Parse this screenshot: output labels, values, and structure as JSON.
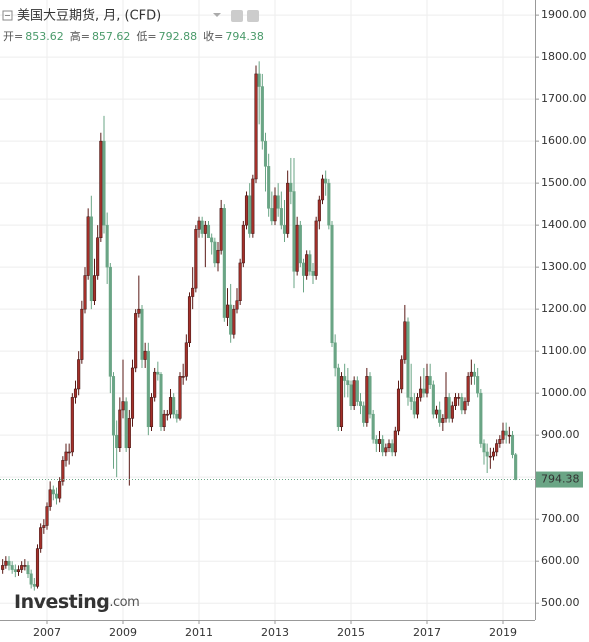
{
  "chart_data": {
    "type": "candlestick",
    "title": "美国大豆期货, 月, (CFD)",
    "ohlc_labels": [
      "开=",
      "高=",
      "低=",
      "收="
    ],
    "categories": [
      null,
      null,
      null,
      null,
      null,
      null,
      null,
      null,
      null,
      null,
      null,
      null,
      null,
      null,
      "2007",
      null,
      null,
      null,
      null,
      null,
      null,
      null,
      null,
      null,
      null,
      null,
      null,
      null,
      null,
      null,
      null,
      null,
      null,
      null,
      null,
      null,
      null,
      null,
      "2009",
      null,
      null,
      null,
      null,
      null,
      null,
      null,
      null,
      null,
      null,
      null,
      null,
      null,
      null,
      null,
      null,
      null,
      null,
      null,
      null,
      null,
      null,
      null,
      "2011",
      null,
      null,
      null,
      null,
      null,
      null,
      null,
      null,
      null,
      null,
      null,
      null,
      null,
      null,
      null,
      null,
      null,
      null,
      null,
      null,
      null,
      null,
      null,
      "2013",
      null,
      null,
      null,
      null,
      null,
      null,
      null,
      null,
      null,
      null,
      null,
      null,
      null,
      null,
      null,
      null,
      null,
      null,
      null,
      null,
      null,
      null,
      null,
      "2015",
      null,
      null,
      null,
      null,
      null,
      null,
      null,
      null,
      null,
      null,
      null,
      null,
      null,
      null,
      null,
      null,
      null,
      null,
      null,
      null,
      null,
      null,
      null,
      "2017",
      null,
      null,
      null,
      null,
      null,
      null,
      null,
      null,
      null,
      null,
      null,
      null,
      null,
      null,
      null,
      null,
      null,
      null,
      null,
      null,
      null,
      null,
      null,
      "2019",
      null,
      null,
      null,
      null
    ],
    "open": [
      580,
      590,
      600,
      590,
      580,
      575,
      580,
      590,
      590,
      570,
      545,
      540,
      630,
      680,
      685,
      730,
      770,
      760,
      750,
      790,
      840,
      860,
      860,
      990,
      1010,
      1080,
      1200,
      1280,
      1420,
      1220,
      1280,
      1370,
      1600,
      1400,
      1300,
      1040,
      900,
      870,
      960,
      980,
      870,
      940,
      1060,
      1190,
      1200,
      1080,
      1100,
      920,
      990,
      1050,
      1045,
      920,
      950,
      950,
      990,
      950,
      940,
      1040,
      1040,
      1120,
      1230,
      1250,
      1390,
      1410,
      1380,
      1400,
      1370,
      1360,
      1310,
      1340,
      1440,
      1180,
      1210,
      1140,
      1200,
      1220,
      1310,
      1400,
      1470,
      1380,
      1510,
      1760,
      1730,
      1600,
      1540,
      1440,
      1410,
      1470,
      1440,
      1400,
      1380,
      1500,
      1480,
      1290,
      1400,
      1310,
      1280,
      1330,
      1290,
      1280,
      1410,
      1460,
      1510,
      1500,
      1400,
      1120,
      1060,
      920,
      1040,
      1030,
      1020,
      970,
      1030,
      980,
      970,
      930,
      1040,
      950,
      890,
      880,
      890,
      860,
      870,
      880,
      860,
      910,
      1010,
      1080,
      1170,
      990,
      980,
      950,
      990,
      1010,
      1000,
      1040,
      1020,
      950,
      960,
      930,
      940,
      990,
      940,
      970,
      990,
      990,
      960,
      980,
      1040,
      1050,
      1040,
      1000,
      880,
      860,
      850,
      850,
      860,
      880,
      890,
      910,
      900,
      900,
      853.62
    ],
    "high": [
      605,
      612,
      612,
      600,
      592,
      590,
      600,
      605,
      600,
      580,
      560,
      640,
      690,
      700,
      740,
      790,
      780,
      775,
      800,
      850,
      880,
      880,
      1000,
      1030,
      1100,
      1220,
      1300,
      1440,
      1470,
      1320,
      1400,
      1620,
      1660,
      1430,
      1310,
      1050,
      935,
      990,
      1080,
      990,
      960,
      1080,
      1200,
      1280,
      1210,
      1120,
      1120,
      1000,
      1060,
      1075,
      1050,
      960,
      960,
      1010,
      1000,
      960,
      1050,
      1070,
      1140,
      1240,
      1300,
      1400,
      1420,
      1420,
      1410,
      1410,
      1380,
      1370,
      1360,
      1460,
      1450,
      1250,
      1260,
      1210,
      1250,
      1320,
      1410,
      1480,
      1500,
      1520,
      1780,
      1790,
      1760,
      1620,
      1570,
      1480,
      1490,
      1500,
      1480,
      1460,
      1530,
      1560,
      1560,
      1420,
      1410,
      1320,
      1340,
      1340,
      1310,
      1420,
      1470,
      1520,
      1530,
      1510,
      1410,
      1140,
      1070,
      1050,
      1070,
      1060,
      1030,
      1040,
      1040,
      1000,
      980,
      1060,
      1050,
      960,
      900,
      910,
      900,
      880,
      890,
      890,
      920,
      1030,
      1090,
      1210,
      1180,
      1070,
      1000,
      1000,
      1040,
      1060,
      1070,
      1070,
      1030,
      970,
      980,
      950,
      1050,
      1000,
      980,
      1000,
      1000,
      1000,
      990,
      1050,
      1080,
      1070,
      1060,
      1010,
      890,
      880,
      870,
      870,
      890,
      900,
      930,
      930,
      920,
      910,
      857.62
    ],
    "low": [
      570,
      582,
      578,
      570,
      562,
      565,
      572,
      578,
      560,
      535,
      530,
      535,
      620,
      665,
      675,
      720,
      745,
      735,
      740,
      780,
      825,
      830,
      850,
      975,
      995,
      1070,
      1190,
      1270,
      1200,
      1210,
      1270,
      1360,
      1380,
      1260,
      1000,
      820,
      800,
      860,
      940,
      860,
      780,
      920,
      1050,
      1180,
      1060,
      1060,
      900,
      910,
      980,
      1030,
      910,
      910,
      935,
      940,
      940,
      930,
      935,
      1020,
      1030,
      1110,
      1200,
      1240,
      1370,
      1370,
      1300,
      1370,
      1330,
      1300,
      1290,
      1330,
      1170,
      1160,
      1120,
      1130,
      1190,
      1210,
      1300,
      1390,
      1370,
      1370,
      1500,
      1640,
      1580,
      1480,
      1420,
      1400,
      1400,
      1420,
      1390,
      1360,
      1370,
      1450,
      1250,
      1280,
      1300,
      1240,
      1270,
      1280,
      1260,
      1270,
      1390,
      1450,
      1470,
      1390,
      1110,
      1040,
      910,
      910,
      990,
      990,
      960,
      960,
      970,
      950,
      920,
      920,
      940,
      880,
      860,
      860,
      850,
      850,
      860,
      850,
      850,
      900,
      1000,
      1070,
      970,
      960,
      940,
      940,
      980,
      990,
      990,
      1010,
      940,
      940,
      920,
      910,
      930,
      930,
      930,
      960,
      970,
      950,
      950,
      970,
      1020,
      1020,
      990,
      870,
      830,
      810,
      820,
      840,
      850,
      870,
      880,
      880,
      880,
      845,
      792.88
    ],
    "close": [
      590,
      600,
      590,
      580,
      575,
      580,
      590,
      590,
      570,
      545,
      540,
      630,
      680,
      685,
      730,
      770,
      760,
      750,
      790,
      840,
      860,
      860,
      990,
      1010,
      1080,
      1200,
      1280,
      1420,
      1220,
      1280,
      1370,
      1600,
      1400,
      1300,
      1040,
      900,
      870,
      960,
      980,
      870,
      940,
      1060,
      1190,
      1200,
      1080,
      1100,
      920,
      990,
      1050,
      1045,
      920,
      950,
      950,
      990,
      950,
      940,
      1040,
      1040,
      1120,
      1230,
      1250,
      1390,
      1410,
      1380,
      1400,
      1370,
      1360,
      1310,
      1340,
      1440,
      1180,
      1210,
      1140,
      1200,
      1220,
      1310,
      1400,
      1470,
      1380,
      1510,
      1760,
      1730,
      1600,
      1540,
      1440,
      1410,
      1470,
      1440,
      1400,
      1380,
      1500,
      1480,
      1290,
      1400,
      1310,
      1280,
      1330,
      1290,
      1280,
      1410,
      1460,
      1510,
      1500,
      1400,
      1120,
      1060,
      920,
      1040,
      1030,
      1020,
      970,
      1030,
      980,
      970,
      930,
      1040,
      950,
      890,
      880,
      890,
      860,
      870,
      880,
      860,
      910,
      1010,
      1080,
      1170,
      990,
      980,
      950,
      990,
      1010,
      1000,
      1040,
      1020,
      950,
      960,
      930,
      940,
      990,
      940,
      970,
      990,
      990,
      960,
      980,
      1040,
      1050,
      1040,
      1000,
      880,
      860,
      850,
      850,
      860,
      880,
      890,
      910,
      900,
      900,
      853.62,
      794.38
    ],
    "up_color": "#a3302a",
    "down_color": "#6aa585",
    "ylim": [
      460,
      1936
    ],
    "yticks": [
      {
        "value": 500,
        "label": "500.00"
      },
      {
        "value": 600,
        "label": "600.00"
      },
      {
        "value": 700,
        "label": "700.00"
      },
      {
        "value": 800,
        "label": "800.00"
      },
      {
        "value": 900,
        "label": "900.00"
      },
      {
        "value": 1000,
        "label": "1000.00"
      },
      {
        "value": 1100,
        "label": "1100.00"
      },
      {
        "value": 1200,
        "label": "1200.00"
      },
      {
        "value": 1300,
        "label": "1300.00"
      },
      {
        "value": 1400,
        "label": "1400.00"
      },
      {
        "value": 1500,
        "label": "1500.00"
      },
      {
        "value": 1600,
        "label": "1600.00"
      },
      {
        "value": 1700,
        "label": "1700.00"
      },
      {
        "value": 1800,
        "label": "1800.00"
      },
      {
        "value": 1900,
        "label": "1900.00"
      }
    ],
    "grid": true
  },
  "watermark": [
    "Investing",
    ".com"
  ]
}
